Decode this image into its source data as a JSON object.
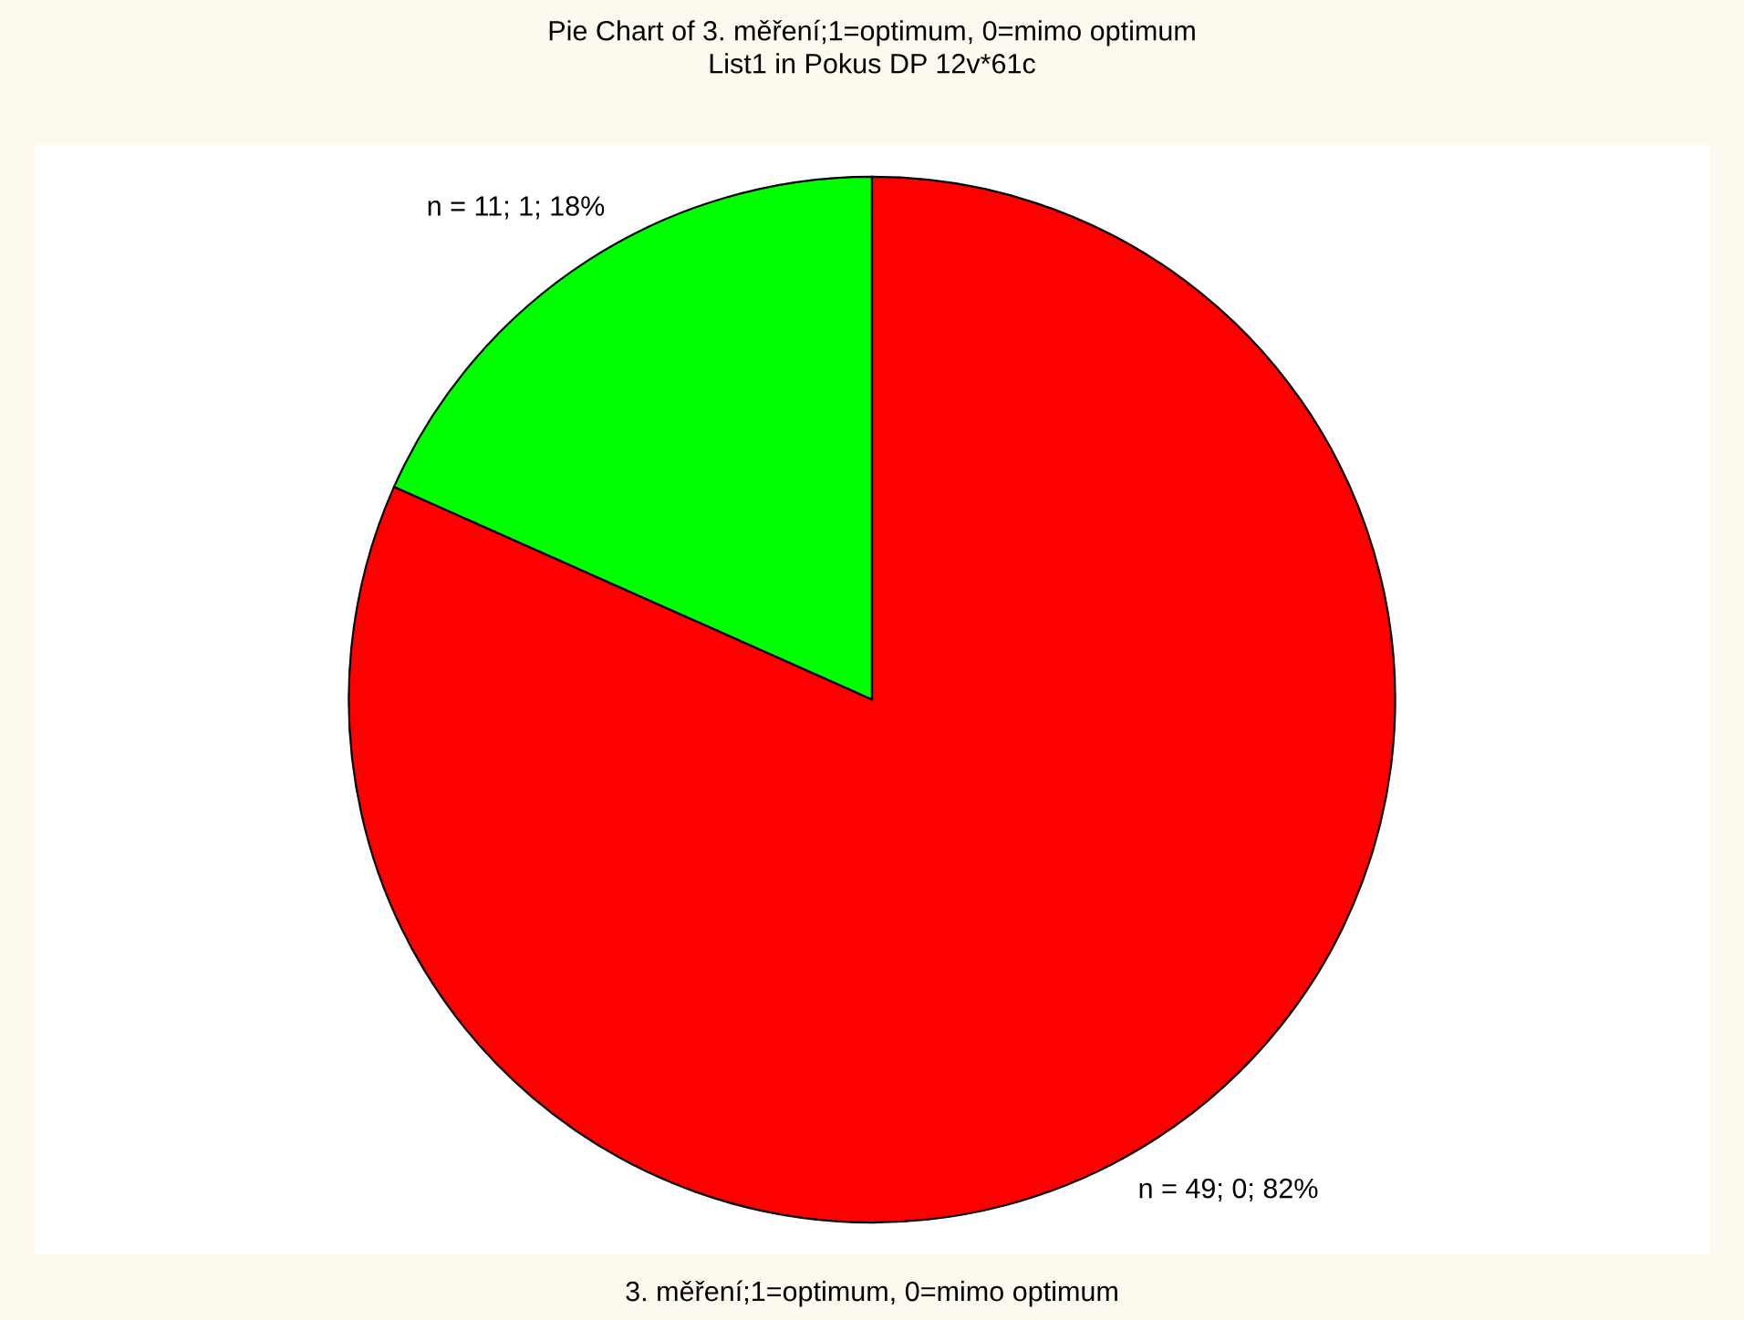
{
  "chart_data": {
    "type": "pie",
    "title": "Pie Chart of 3. měření;1=optimum, 0=mimo optimum",
    "subtitle": "List1 in Pokus DP 12v*61c",
    "xlabel": "3. měření;1=optimum, 0=mimo optimum",
    "categories": [
      null,
      null
    ],
    "values": [
      11,
      49
    ],
    "colors": [
      "#00ff00",
      "#ff0000"
    ],
    "value_labels": [
      "n = 11; 1; 18%",
      "n = 49; 0; 82%"
    ]
  }
}
